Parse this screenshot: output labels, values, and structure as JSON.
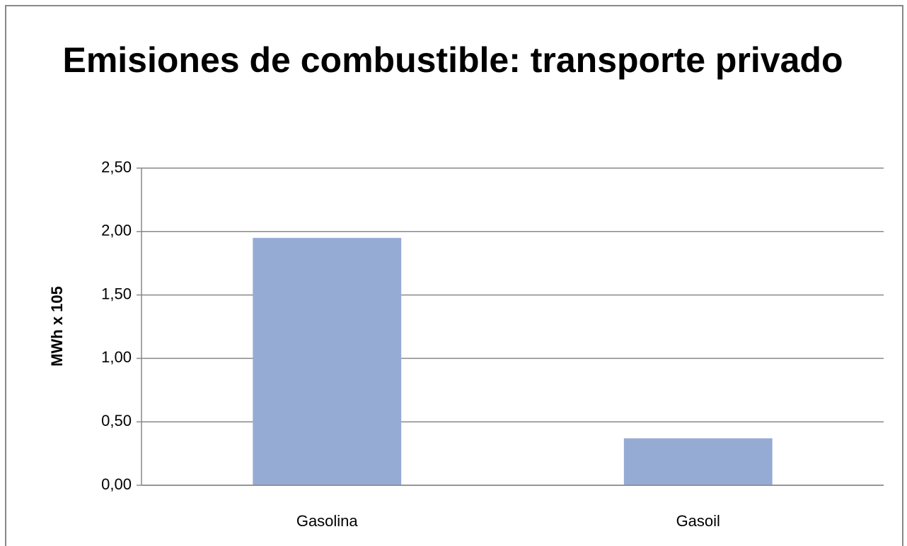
{
  "chart_data": {
    "type": "bar",
    "title": "Emisiones de combustible: transporte privado",
    "ylabel": "MWh x 105",
    "categories": [
      "Gasolina",
      "Gasoil"
    ],
    "values": [
      1.95,
      0.37
    ],
    "color": "#95abd4",
    "ylim": [
      0,
      2.5
    ],
    "yticks": [
      {
        "value": 0,
        "label": "0,00"
      },
      {
        "value": 0.5,
        "label": "0,50"
      },
      {
        "value": 1,
        "label": "1,00"
      },
      {
        "value": 1.5,
        "label": "1,50"
      },
      {
        "value": 2,
        "label": "2,00"
      },
      {
        "value": 2.5,
        "label": "2,50"
      }
    ],
    "grid": true
  }
}
